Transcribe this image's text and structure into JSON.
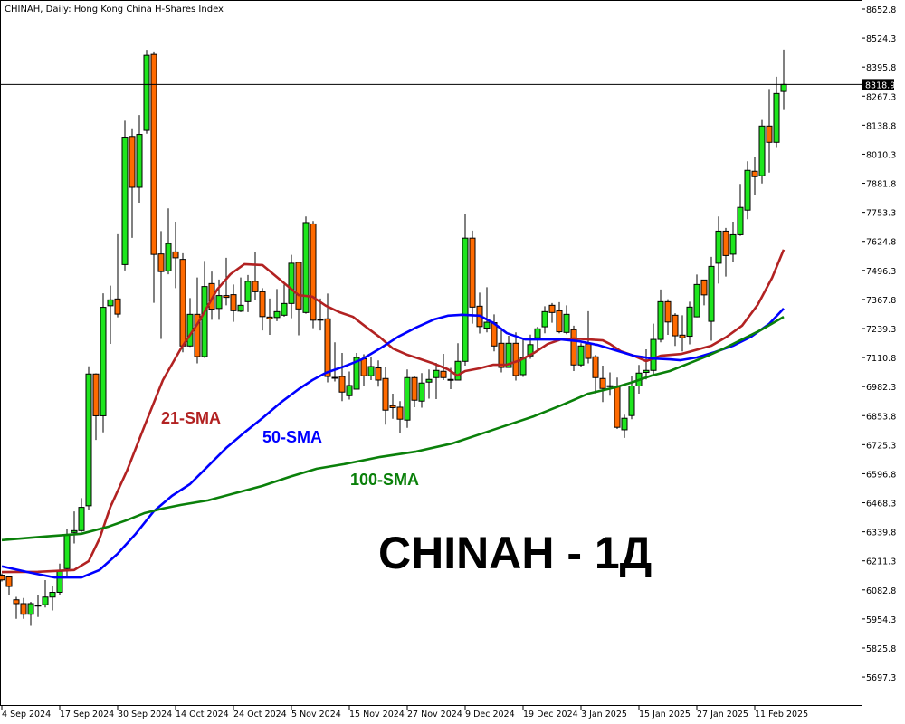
{
  "chart_data": {
    "type": "candlestick",
    "title": "CHINAH, Daily:  Hong Kong China H-Shares Index",
    "watermark": "CHINAH - 1Д",
    "current_price": "8318.9",
    "ylim": [
      5600,
      8700
    ],
    "y_ticks": [
      "8652.8",
      "8524.3",
      "8395.8",
      "8267.3",
      "8138.8",
      "8010.3",
      "7881.8",
      "7753.3",
      "7624.8",
      "7496.3",
      "7367.8",
      "7239.3",
      "7110.8",
      "6982.3",
      "6853.8",
      "6725.3",
      "6596.8",
      "6468.3",
      "6339.8",
      "6211.3",
      "6082.8",
      "5954.3",
      "5825.8",
      "5697.3"
    ],
    "x_ticks": [
      {
        "index": 0,
        "label": "4 Sep 2024"
      },
      {
        "index": 8,
        "label": "17 Sep 2024"
      },
      {
        "index": 16,
        "label": "30 Sep 2024"
      },
      {
        "index": 24,
        "label": "14 Oct 2024"
      },
      {
        "index": 32,
        "label": "24 Oct 2024"
      },
      {
        "index": 40,
        "label": "5 Nov 2024"
      },
      {
        "index": 48,
        "label": "15 Nov 2024"
      },
      {
        "index": 56,
        "label": "27 Nov 2024"
      },
      {
        "index": 64,
        "label": "9 Dec 2024"
      },
      {
        "index": 72,
        "label": "19 Dec 2024"
      },
      {
        "index": 80,
        "label": "3 Jan 2025"
      },
      {
        "index": 88,
        "label": "15 Jan 2025"
      },
      {
        "index": 96,
        "label": "27 Jan 2025"
      },
      {
        "index": 104,
        "label": "11 Feb 2025"
      }
    ],
    "colors": {
      "up": "#1ee61e",
      "down": "#ff6a00",
      "sma21": "#b22222",
      "sma50": "#0000ff",
      "sma100": "#0a800a"
    },
    "ohlc": [
      [
        6148,
        6155,
        6120,
        6127
      ],
      [
        6140,
        6145,
        6059,
        6098
      ],
      [
        6039,
        6052,
        5955,
        6022
      ],
      [
        6022,
        6047,
        5955,
        5975
      ],
      [
        5975,
        6030,
        5924,
        6022
      ],
      [
        6014,
        6059,
        5963,
        6015
      ],
      [
        6017,
        6126,
        6005,
        6051
      ],
      [
        6051,
        6098,
        5992,
        6072
      ],
      [
        6072,
        6199,
        6062,
        6165
      ],
      [
        6177,
        6354,
        6140,
        6325
      ],
      [
        6337,
        6430,
        6288,
        6345
      ],
      [
        6345,
        6489,
        6340,
        6448
      ],
      [
        6455,
        7072,
        6435,
        7038
      ],
      [
        7038,
        7041,
        6746,
        6853
      ],
      [
        6853,
        7395,
        6780,
        7333
      ],
      [
        7340,
        7429,
        7171,
        7366
      ],
      [
        7370,
        7656,
        7289,
        7303
      ],
      [
        7522,
        8159,
        7496,
        8086
      ],
      [
        8089,
        8125,
        7640,
        7864
      ],
      [
        7864,
        8184,
        7796,
        8098
      ],
      [
        8116,
        8472,
        8101,
        8448
      ],
      [
        8452,
        8465,
        7353,
        7567
      ],
      [
        7569,
        7670,
        7193,
        7491
      ],
      [
        7494,
        7771,
        7479,
        7615
      ],
      [
        7578,
        7712,
        7418,
        7552
      ],
      [
        7545,
        7572,
        7134,
        7162
      ],
      [
        7162,
        7374,
        7158,
        7302
      ],
      [
        7302,
        7465,
        7085,
        7115
      ],
      [
        7115,
        7538,
        7109,
        7425
      ],
      [
        7438,
        7491,
        7278,
        7325
      ],
      [
        7328,
        7456,
        7278,
        7385
      ],
      [
        7385,
        7552,
        7342,
        7377
      ],
      [
        7389,
        7434,
        7269,
        7318
      ],
      [
        7316,
        7465,
        7312,
        7342
      ],
      [
        7358,
        7476,
        7312,
        7448
      ],
      [
        7448,
        7578,
        7365,
        7402
      ],
      [
        7402,
        7418,
        7231,
        7292
      ],
      [
        7290,
        7372,
        7211,
        7282
      ],
      [
        7288,
        7414,
        7272,
        7314
      ],
      [
        7298,
        7434,
        7292,
        7350
      ],
      [
        7350,
        7565,
        7285,
        7528
      ],
      [
        7532,
        7534,
        7209,
        7326
      ],
      [
        7310,
        7735,
        7305,
        7708
      ],
      [
        7702,
        7715,
        7241,
        7276
      ],
      [
        7280,
        7372,
        7231,
        7278
      ],
      [
        7282,
        7394,
        7001,
        7027
      ],
      [
        7022,
        7178,
        7005,
        7023
      ],
      [
        7027,
        7131,
        6918,
        6958
      ],
      [
        6942,
        7049,
        6925,
        6987
      ],
      [
        6971,
        7131,
        6971,
        7111
      ],
      [
        7105,
        7125,
        6985,
        7030
      ],
      [
        7030,
        7115,
        7011,
        7071
      ],
      [
        7065,
        7098,
        6982,
        7011
      ],
      [
        7018,
        7071,
        6814,
        6878
      ],
      [
        6898,
        6951,
        6840,
        6889
      ],
      [
        6891,
        6918,
        6778,
        6838
      ],
      [
        6834,
        7058,
        6800,
        7022
      ],
      [
        7022,
        7031,
        6891,
        6922
      ],
      [
        6918,
        7042,
        6889,
        6998
      ],
      [
        7002,
        7058,
        6929,
        7014
      ],
      [
        7022,
        7087,
        6927,
        7054
      ],
      [
        7050,
        7127,
        7011,
        7022
      ],
      [
        7014,
        7065,
        6971,
        7013
      ],
      [
        7011,
        7174,
        7009,
        7094
      ],
      [
        7094,
        7745,
        7075,
        7639
      ],
      [
        7639,
        7672,
        7261,
        7334
      ],
      [
        7338,
        7398,
        7217,
        7248
      ],
      [
        7241,
        7422,
        7222,
        7267
      ],
      [
        7265,
        7302,
        7138,
        7162
      ],
      [
        7174,
        7232,
        7045,
        7067
      ],
      [
        7067,
        7207,
        7065,
        7174
      ],
      [
        7174,
        7222,
        7009,
        7031
      ],
      [
        7035,
        7192,
        7025,
        7111
      ],
      [
        7118,
        7212,
        7105,
        7168
      ],
      [
        7198,
        7247,
        7145,
        7238
      ],
      [
        7247,
        7338,
        7218,
        7314
      ],
      [
        7342,
        7352,
        7265,
        7310
      ],
      [
        7318,
        7356,
        7218,
        7225
      ],
      [
        7222,
        7342,
        7214,
        7302
      ],
      [
        7234,
        7252,
        7051,
        7078
      ],
      [
        7078,
        7174,
        7071,
        7162
      ],
      [
        7171,
        7316,
        7085,
        7107
      ],
      [
        7114,
        7122,
        6951,
        7022
      ],
      [
        7018,
        7075,
        6914,
        6974
      ],
      [
        6985,
        7045,
        6942,
        6986
      ],
      [
        6982,
        7022,
        6795,
        6802
      ],
      [
        6791,
        6858,
        6755,
        6842
      ],
      [
        6854,
        7031,
        6838,
        6985
      ],
      [
        6985,
        7078,
        6951,
        7042
      ],
      [
        7045,
        7147,
        7014,
        7054
      ],
      [
        7054,
        7261,
        7038,
        7191
      ],
      [
        7191,
        7412,
        7178,
        7358
      ],
      [
        7358,
        7369,
        7211,
        7268
      ],
      [
        7298,
        7307,
        7162,
        7207
      ],
      [
        7210,
        7298,
        7138,
        7198
      ],
      [
        7205,
        7358,
        7169,
        7334
      ],
      [
        7291,
        7478,
        7289,
        7434
      ],
      [
        7454,
        7454,
        7342,
        7388
      ],
      [
        7271,
        7556,
        7185,
        7514
      ],
      [
        7528,
        7735,
        7438,
        7670
      ],
      [
        7670,
        7684,
        7469,
        7562
      ],
      [
        7568,
        7712,
        7534,
        7654
      ],
      [
        7654,
        7879,
        7649,
        7775
      ],
      [
        7763,
        7979,
        7723,
        7939
      ],
      [
        7935,
        7999,
        7829,
        7911
      ],
      [
        7915,
        8162,
        7881,
        8135
      ],
      [
        8135,
        8299,
        7929,
        8063
      ],
      [
        8063,
        8353,
        8042,
        8279
      ],
      [
        8288,
        8473,
        8210,
        8319
      ]
    ],
    "series": [
      {
        "name": "21-SMA",
        "color_key": "sma21",
        "points": [
          [
            0,
            6162
          ],
          [
            5,
            6163
          ],
          [
            10,
            6171
          ],
          [
            12,
            6210
          ],
          [
            13.5,
            6310
          ],
          [
            15,
            6450
          ],
          [
            17.3,
            6611
          ],
          [
            19.75,
            6811
          ],
          [
            22.25,
            7011
          ],
          [
            24.75,
            7151
          ],
          [
            27.25,
            7271
          ],
          [
            29.75,
            7412
          ],
          [
            31.6,
            7480
          ],
          [
            33.5,
            7524
          ],
          [
            36,
            7520
          ],
          [
            39,
            7440
          ],
          [
            41,
            7387
          ],
          [
            42.9,
            7380
          ],
          [
            44.75,
            7340
          ],
          [
            46.6,
            7312
          ],
          [
            48.5,
            7291
          ],
          [
            50.4,
            7244
          ],
          [
            52.25,
            7200
          ],
          [
            54,
            7151
          ],
          [
            56,
            7123
          ],
          [
            57.9,
            7103
          ],
          [
            59.75,
            7083
          ],
          [
            61.6,
            7059
          ],
          [
            62.9,
            7031
          ],
          [
            64,
            7051
          ],
          [
            66,
            7063
          ],
          [
            67.9,
            7079
          ],
          [
            69.75,
            7079
          ],
          [
            71.6,
            7099
          ],
          [
            73.5,
            7131
          ],
          [
            75.4,
            7171
          ],
          [
            77.25,
            7191
          ],
          [
            79,
            7195
          ],
          [
            81,
            7191
          ],
          [
            83,
            7187
          ],
          [
            84,
            7171
          ],
          [
            85.5,
            7139
          ],
          [
            87.25,
            7119
          ],
          [
            89,
            7095
          ],
          [
            91,
            7119
          ],
          [
            93.9,
            7127
          ],
          [
            98,
            7163
          ],
          [
            100,
            7200
          ],
          [
            102.25,
            7252
          ],
          [
            104.4,
            7344
          ],
          [
            106.4,
            7464
          ],
          [
            108,
            7588
          ]
        ]
      },
      {
        "name": "50-SMA",
        "color_key": "sma50",
        "points": [
          [
            0,
            6187
          ],
          [
            3.5,
            6162
          ],
          [
            7.25,
            6138
          ],
          [
            11,
            6138
          ],
          [
            13.5,
            6171
          ],
          [
            16,
            6243
          ],
          [
            18.5,
            6331
          ],
          [
            21,
            6431
          ],
          [
            23.5,
            6499
          ],
          [
            26,
            6551
          ],
          [
            28.5,
            6631
          ],
          [
            31,
            6711
          ],
          [
            33.5,
            6779
          ],
          [
            36,
            6843
          ],
          [
            38.5,
            6911
          ],
          [
            41,
            6971
          ],
          [
            42.9,
            7011
          ],
          [
            44.75,
            7043
          ],
          [
            47.25,
            7071
          ],
          [
            49.75,
            7103
          ],
          [
            52.25,
            7151
          ],
          [
            54.75,
            7203
          ],
          [
            57.25,
            7244
          ],
          [
            59.75,
            7280
          ],
          [
            61.6,
            7296
          ],
          [
            63.5,
            7300
          ],
          [
            66,
            7296
          ],
          [
            67.9,
            7264
          ],
          [
            69.75,
            7219
          ],
          [
            72.25,
            7191
          ],
          [
            77.25,
            7191
          ],
          [
            79.75,
            7183
          ],
          [
            82.25,
            7167
          ],
          [
            84.75,
            7143
          ],
          [
            87.25,
            7119
          ],
          [
            89.75,
            7107
          ],
          [
            92.25,
            7103
          ],
          [
            93.75,
            7099
          ],
          [
            96,
            7111
          ],
          [
            98.5,
            7135
          ],
          [
            101,
            7163
          ],
          [
            103.5,
            7203
          ],
          [
            106,
            7260
          ],
          [
            108,
            7328
          ]
        ]
      },
      {
        "name": "100-SMA",
        "color_key": "sma100",
        "points": [
          [
            0,
            6303
          ],
          [
            6,
            6319
          ],
          [
            11,
            6331
          ],
          [
            14.75,
            6363
          ],
          [
            17.25,
            6391
          ],
          [
            19.75,
            6423
          ],
          [
            22.25,
            6443
          ],
          [
            24.75,
            6459
          ],
          [
            28.5,
            6479
          ],
          [
            32.25,
            6511
          ],
          [
            36,
            6543
          ],
          [
            39.75,
            6583
          ],
          [
            43.5,
            6619
          ],
          [
            47.25,
            6639
          ],
          [
            52.25,
            6671
          ],
          [
            57.25,
            6695
          ],
          [
            62.25,
            6731
          ],
          [
            66,
            6771
          ],
          [
            69.75,
            6811
          ],
          [
            73.5,
            6851
          ],
          [
            77.25,
            6899
          ],
          [
            81,
            6951
          ],
          [
            84.75,
            6979
          ],
          [
            87.25,
            7003
          ],
          [
            89.75,
            7031
          ],
          [
            92.25,
            7051
          ],
          [
            94.75,
            7083
          ],
          [
            97.25,
            7115
          ],
          [
            99.75,
            7151
          ],
          [
            102.25,
            7191
          ],
          [
            104.75,
            7231
          ],
          [
            108,
            7291
          ]
        ]
      }
    ]
  }
}
